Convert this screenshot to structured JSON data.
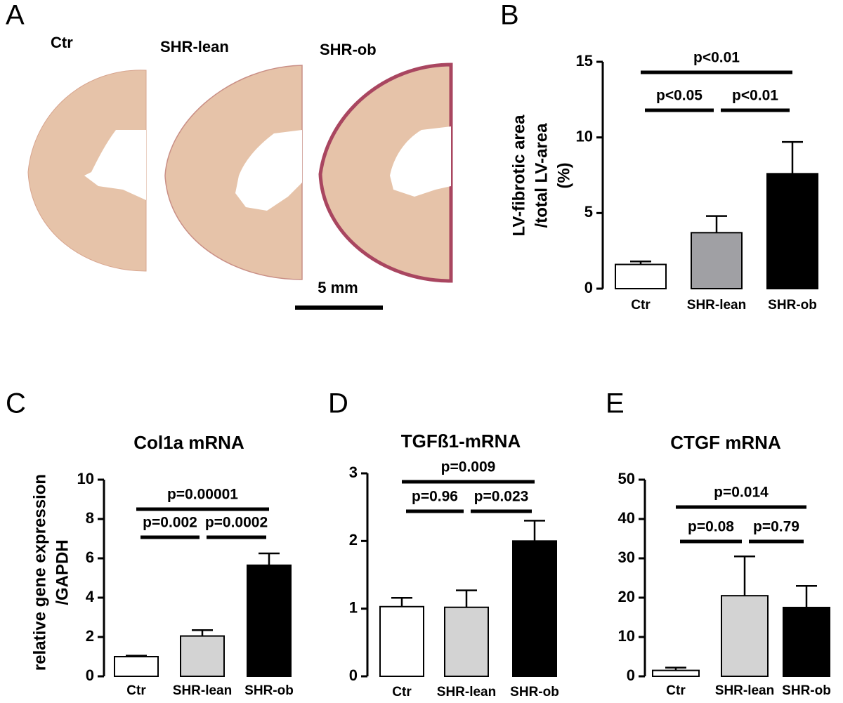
{
  "panel_a": {
    "panel": "A",
    "labels": [
      "Ctr",
      "SHR-lean",
      "SHR-ob"
    ],
    "scale_bar": "5 mm"
  },
  "chart_data": [
    {
      "panel": "B",
      "type": "bar",
      "ylabel": [
        "LV-fibrotic area",
        "/total LV-area",
        "(%)"
      ],
      "categories": [
        "Ctr",
        "SHR-lean",
        "SHR-ob"
      ],
      "values": [
        1.6,
        3.7,
        7.6
      ],
      "errors": [
        0.2,
        1.1,
        2.1
      ],
      "colors": [
        "#ffffff",
        "#a0a0a4",
        "#000000"
      ],
      "ylim": [
        0,
        15
      ],
      "yticks": [
        0,
        5,
        10,
        15
      ],
      "comparisons": [
        {
          "label": "p<0.01",
          "between": [
            0,
            2
          ]
        },
        {
          "label": "p<0.05",
          "between": [
            0,
            1
          ]
        },
        {
          "label": "p<0.01",
          "between": [
            1,
            2
          ]
        }
      ]
    },
    {
      "panel": "C",
      "type": "bar",
      "title": "Col1a mRNA",
      "ylabel": [
        "relative gene expression",
        "/GAPDH"
      ],
      "categories": [
        "Ctr",
        "SHR-lean",
        "SHR-ob"
      ],
      "values": [
        1.0,
        2.05,
        5.65
      ],
      "errors": [
        0.05,
        0.3,
        0.6
      ],
      "colors": [
        "#ffffff",
        "#d3d3d3",
        "#000000"
      ],
      "ylim": [
        0,
        10
      ],
      "yticks": [
        0,
        2,
        4,
        6,
        8,
        10
      ],
      "comparisons": [
        {
          "label": "p=0.00001",
          "between": [
            0,
            2
          ]
        },
        {
          "label": "p=0.002",
          "between": [
            0,
            1
          ]
        },
        {
          "label": "p=0.0002",
          "between": [
            1,
            2
          ]
        }
      ]
    },
    {
      "panel": "D",
      "type": "bar",
      "title": "TGFß1-mRNA",
      "categories": [
        "Ctr",
        "SHR-lean",
        "SHR-ob"
      ],
      "values": [
        1.03,
        1.02,
        2.0
      ],
      "errors": [
        0.13,
        0.25,
        0.3
      ],
      "colors": [
        "#ffffff",
        "#d3d3d3",
        "#000000"
      ],
      "ylim": [
        0,
        3
      ],
      "yticks": [
        0,
        1,
        2,
        3
      ],
      "comparisons": [
        {
          "label": "p=0.009",
          "between": [
            0,
            2
          ]
        },
        {
          "label": "p=0.96",
          "between": [
            0,
            1
          ]
        },
        {
          "label": "p=0.023",
          "between": [
            1,
            2
          ]
        }
      ]
    },
    {
      "panel": "E",
      "type": "bar",
      "title": "CTGF mRNA",
      "categories": [
        "Ctr",
        "SHR-lean",
        "SHR-ob"
      ],
      "values": [
        1.5,
        20.5,
        17.5
      ],
      "errors": [
        0.7,
        10,
        5.5
      ],
      "colors": [
        "#ffffff",
        "#d3d3d3",
        "#000000"
      ],
      "ylim": [
        0,
        50
      ],
      "yticks": [
        0,
        10,
        20,
        30,
        40,
        50
      ],
      "comparisons": [
        {
          "label": "p=0.014",
          "between": [
            0,
            2
          ]
        },
        {
          "label": "p=0.08",
          "between": [
            0,
            1
          ]
        },
        {
          "label": "p=0.79",
          "between": [
            1,
            2
          ]
        }
      ]
    }
  ]
}
